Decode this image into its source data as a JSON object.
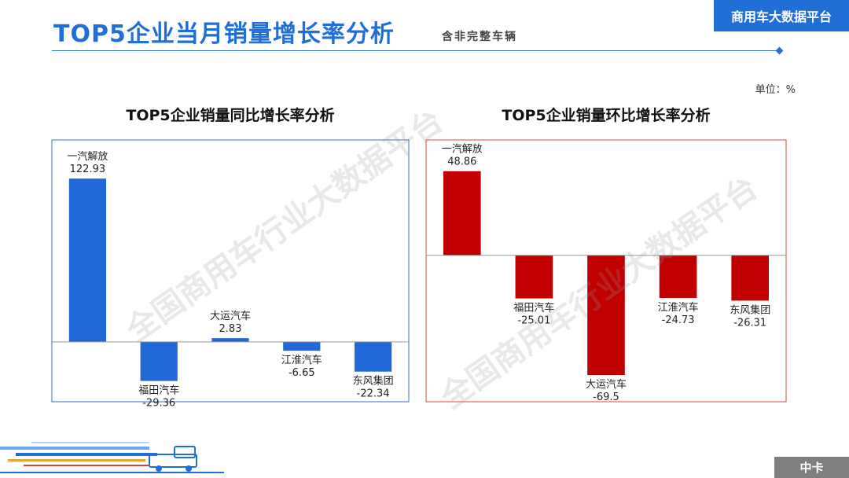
{
  "header": {
    "title": "TOP5企业当月销量增长率分析",
    "subtitle": "含非完整车辆",
    "brand": "商用车大数据平台",
    "unit": "单位：%"
  },
  "watermark": "全国商用车行业大数据平台",
  "footer": {
    "tag": "中卡"
  },
  "colors": {
    "accent": "#1f6fd6",
    "blue_bar": "#2169d8",
    "red_bar": "#c00000"
  },
  "chart_data": [
    {
      "type": "bar",
      "title": "TOP5企业销量同比增长率分析",
      "categories": [
        "一汽解放",
        "福田汽车",
        "大运汽车",
        "江淮汽车",
        "东风集团"
      ],
      "values": [
        122.93,
        -29.36,
        2.83,
        -6.65,
        -22.34
      ],
      "value_labels": [
        "122.93",
        "-29.36",
        "2.83",
        "-6.65",
        "-22.34"
      ],
      "ylim": [
        -45,
        152
      ],
      "color": "#2169d8",
      "border_color": "#3a6fc4",
      "grid": false,
      "legend": "none"
    },
    {
      "type": "bar",
      "title": "TOP5企业销量环比增长率分析",
      "categories": [
        "一汽解放",
        "福田汽车",
        "大运汽车",
        "江淮汽车",
        "东风集团"
      ],
      "values": [
        48.86,
        -25.01,
        -69.5,
        -24.73,
        -26.31
      ],
      "value_labels": [
        "48.86",
        "-25.01",
        "-69.5",
        "-24.73",
        "-26.31"
      ],
      "ylim": [
        -85,
        67
      ],
      "color": "#c00000",
      "border_color": "#d44",
      "grid": false,
      "legend": "none"
    }
  ]
}
